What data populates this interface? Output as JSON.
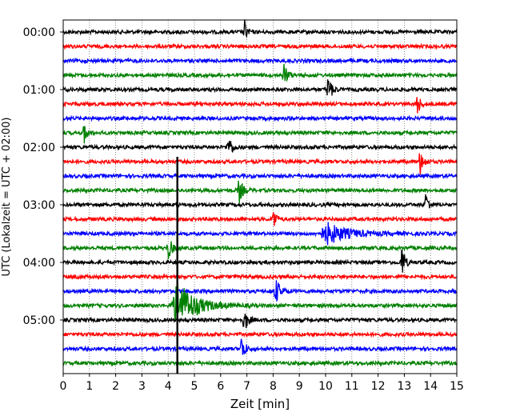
{
  "chart_data": {
    "type": "line",
    "subtype": "helicorder",
    "title": "",
    "xlabel": "Zeit  [min]",
    "ylabel": "UTC (Lokalzeit = UTC + 02:00)",
    "xlim": [
      0,
      15
    ],
    "x_ticks": [
      0,
      1,
      2,
      3,
      4,
      5,
      6,
      7,
      8,
      9,
      10,
      11,
      12,
      13,
      14,
      15
    ],
    "y_tick_labels": [
      "00:00",
      "01:00",
      "02:00",
      "03:00",
      "04:00",
      "05:00"
    ],
    "trace_interval_min": 15,
    "trace_count": 24,
    "trace_colors": [
      "#000000",
      "#ff0000",
      "#0000ff",
      "#008000"
    ],
    "grid": "x-dotted",
    "events": [
      {
        "trace": 0,
        "minute": 6.9,
        "amplitude": 0.9,
        "duration": 0.15
      },
      {
        "trace": 3,
        "minute": 8.4,
        "amplitude": 0.9,
        "duration": 0.2
      },
      {
        "trace": 4,
        "minute": 10.1,
        "amplitude": 1.0,
        "duration": 0.2
      },
      {
        "trace": 5,
        "minute": 13.5,
        "amplitude": 0.9,
        "duration": 0.15
      },
      {
        "trace": 7,
        "minute": 0.8,
        "amplitude": 0.9,
        "duration": 0.15
      },
      {
        "trace": 8,
        "minute": 6.3,
        "amplitude": 0.9,
        "duration": 0.2
      },
      {
        "trace": 9,
        "minute": 13.6,
        "amplitude": 0.9,
        "duration": 0.2
      },
      {
        "trace": 11,
        "minute": 6.7,
        "amplitude": 0.9,
        "duration": 0.2
      },
      {
        "trace": 12,
        "minute": 13.8,
        "amplitude": 1.1,
        "duration": 0.15
      },
      {
        "trace": 13,
        "minute": 8.0,
        "amplitude": 1.0,
        "duration": 0.15
      },
      {
        "trace": 14,
        "minute": 10.1,
        "amplitude": 0.7,
        "duration": 1.2
      },
      {
        "trace": 15,
        "minute": 4.0,
        "amplitude": 0.9,
        "duration": 0.2
      },
      {
        "trace": 16,
        "minute": 12.9,
        "amplitude": 1.5,
        "duration": 0.15
      },
      {
        "trace": 18,
        "minute": 8.1,
        "amplitude": 0.9,
        "duration": 0.25
      },
      {
        "trace": 19,
        "minute": 4.4,
        "amplitude": 1.6,
        "duration": 1.0
      },
      {
        "trace": 20,
        "minute": 6.9,
        "amplitude": 0.9,
        "duration": 0.2
      },
      {
        "trace": 22,
        "minute": 6.8,
        "amplitude": 0.9,
        "duration": 0.2
      }
    ],
    "spikes": [
      {
        "trace_from": 10,
        "trace_to": 23,
        "minute": 4.35
      }
    ]
  }
}
